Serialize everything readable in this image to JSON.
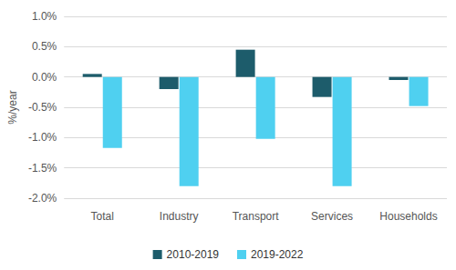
{
  "chart_data": {
    "type": "bar",
    "y_label": "%/year",
    "categories": [
      "Total",
      "Industry",
      "Transport",
      "Services",
      "Households"
    ],
    "series": [
      {
        "name": "2010-2019",
        "color": "#1d5c6b",
        "values": [
          0.05,
          -0.2,
          0.45,
          -0.33,
          -0.05
        ]
      },
      {
        "name": "2019-2022",
        "color": "#4fd0f0",
        "values": [
          -1.17,
          -1.8,
          -1.02,
          -1.8,
          -0.48
        ]
      }
    ],
    "ylim": [
      -2.0,
      1.0
    ],
    "yticks": [
      {
        "value": -2.0,
        "label": "-2.0%"
      },
      {
        "value": -1.5,
        "label": "-1.5%"
      },
      {
        "value": -1.0,
        "label": "-1.0%"
      },
      {
        "value": -0.5,
        "label": "-0.5%"
      },
      {
        "value": 0.0,
        "label": "0.0%"
      },
      {
        "value": 0.5,
        "label": "0.5%"
      },
      {
        "value": 1.0,
        "label": "1.0%"
      }
    ],
    "grid": true,
    "legend": "bottom"
  }
}
